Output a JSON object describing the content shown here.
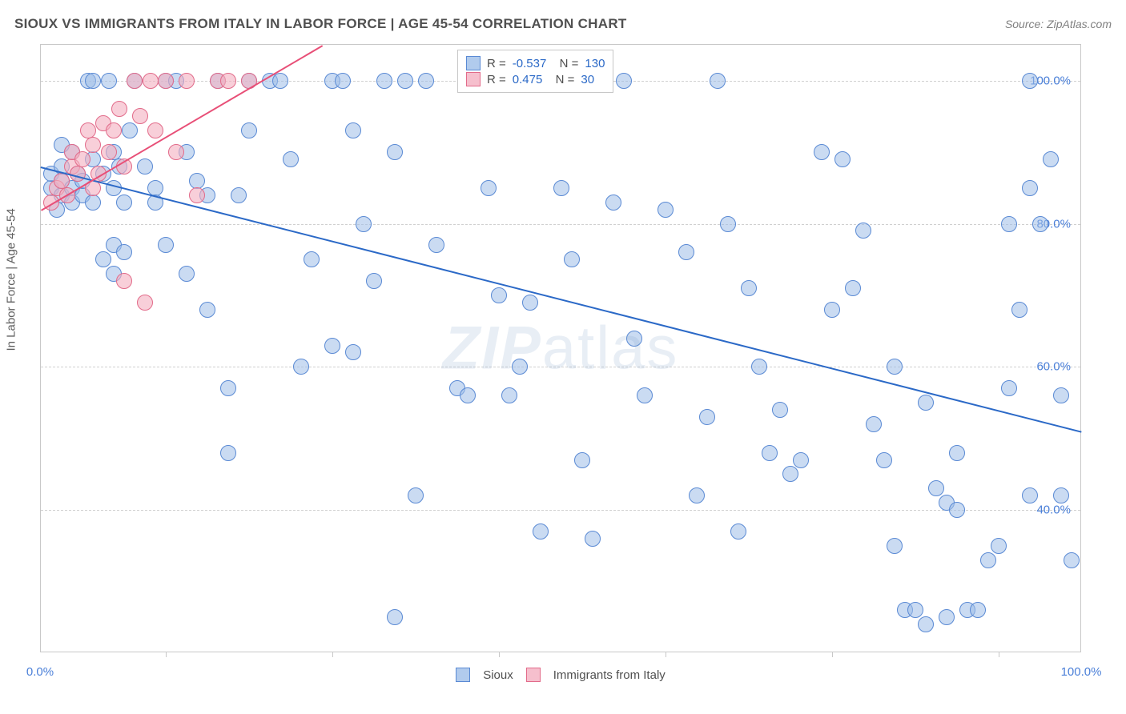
{
  "title": "SIOUX VS IMMIGRANTS FROM ITALY IN LABOR FORCE | AGE 45-54 CORRELATION CHART",
  "source": "Source: ZipAtlas.com",
  "ylabel": "In Labor Force | Age 45-54",
  "watermark": {
    "left": "ZIP",
    "right": "atlas"
  },
  "chart": {
    "type": "scatter",
    "xlim": [
      0,
      100
    ],
    "ylim": [
      20,
      105
    ],
    "yticks": [
      40,
      60,
      80,
      100
    ],
    "ytick_labels": [
      "40.0%",
      "60.0%",
      "80.0%",
      "100.0%"
    ],
    "xtick_positions": [
      12,
      28,
      44,
      60,
      76,
      92
    ],
    "xlabel_min": "0.0%",
    "xlabel_max": "100.0%",
    "grid_color": "#d0d0d0",
    "background": "#ffffff",
    "border_color": "#c8c8c8",
    "marker_size": 20,
    "series": [
      {
        "name": "Sioux",
        "key": "a",
        "fill": "rgba(158,190,232,0.55)",
        "stroke": "#5a8ad4",
        "line_color": "#2b69c7",
        "R": "-0.537",
        "N": "130",
        "trend": {
          "x1": 0,
          "y1": 88,
          "x2": 100,
          "y2": 51
        },
        "points": [
          [
            1,
            85
          ],
          [
            1,
            87
          ],
          [
            2,
            84
          ],
          [
            2,
            86
          ],
          [
            2,
            88
          ],
          [
            1.5,
            82
          ],
          [
            3,
            85
          ],
          [
            3,
            83
          ],
          [
            3.5,
            87
          ],
          [
            3,
            90
          ],
          [
            4,
            84
          ],
          [
            4,
            86
          ],
          [
            4.5,
            100
          ],
          [
            2,
            91
          ],
          [
            5,
            83
          ],
          [
            5,
            89
          ],
          [
            5,
            100
          ],
          [
            6,
            75
          ],
          [
            6,
            87
          ],
          [
            6.5,
            100
          ],
          [
            7,
            77
          ],
          [
            7,
            73
          ],
          [
            7,
            90
          ],
          [
            7.5,
            88
          ],
          [
            7,
            85
          ],
          [
            8,
            83
          ],
          [
            8.5,
            93
          ],
          [
            8,
            76
          ],
          [
            9,
            100
          ],
          [
            10,
            88
          ],
          [
            11,
            85
          ],
          [
            11,
            83
          ],
          [
            12,
            77
          ],
          [
            12,
            100
          ],
          [
            13,
            100
          ],
          [
            14,
            73
          ],
          [
            14,
            90
          ],
          [
            15,
            86
          ],
          [
            16,
            84
          ],
          [
            16,
            68
          ],
          [
            17,
            100
          ],
          [
            18,
            57
          ],
          [
            18,
            48
          ],
          [
            19,
            84
          ],
          [
            20,
            100
          ],
          [
            20,
            93
          ],
          [
            22,
            100
          ],
          [
            23,
            100
          ],
          [
            24,
            89
          ],
          [
            25,
            60
          ],
          [
            26,
            75
          ],
          [
            28,
            100
          ],
          [
            28,
            63
          ],
          [
            29,
            100
          ],
          [
            30,
            93
          ],
          [
            30,
            62
          ],
          [
            31,
            80
          ],
          [
            32,
            72
          ],
          [
            33,
            100
          ],
          [
            34,
            90
          ],
          [
            34,
            25
          ],
          [
            35,
            100
          ],
          [
            36,
            42
          ],
          [
            37,
            100
          ],
          [
            38,
            77
          ],
          [
            40,
            57
          ],
          [
            41,
            56
          ],
          [
            42,
            100
          ],
          [
            43,
            85
          ],
          [
            44,
            70
          ],
          [
            45,
            56
          ],
          [
            46,
            60
          ],
          [
            47,
            69
          ],
          [
            48,
            37
          ],
          [
            50,
            100
          ],
          [
            50,
            85
          ],
          [
            51,
            75
          ],
          [
            52,
            47
          ],
          [
            53,
            36
          ],
          [
            54,
            100
          ],
          [
            55,
            83
          ],
          [
            56,
            100
          ],
          [
            57,
            64
          ],
          [
            58,
            56
          ],
          [
            60,
            82
          ],
          [
            62,
            76
          ],
          [
            63,
            42
          ],
          [
            64,
            53
          ],
          [
            65,
            100
          ],
          [
            66,
            80
          ],
          [
            67,
            37
          ],
          [
            68,
            71
          ],
          [
            69,
            60
          ],
          [
            70,
            48
          ],
          [
            71,
            54
          ],
          [
            72,
            45
          ],
          [
            73,
            47
          ],
          [
            75,
            90
          ],
          [
            76,
            68
          ],
          [
            77,
            89
          ],
          [
            78,
            71
          ],
          [
            79,
            79
          ],
          [
            80,
            52
          ],
          [
            81,
            47
          ],
          [
            82,
            60
          ],
          [
            82,
            35
          ],
          [
            83,
            26
          ],
          [
            84,
            26
          ],
          [
            85,
            24
          ],
          [
            85,
            55
          ],
          [
            86,
            43
          ],
          [
            87,
            25
          ],
          [
            87,
            41
          ],
          [
            88,
            40
          ],
          [
            88,
            48
          ],
          [
            89,
            26
          ],
          [
            90,
            26
          ],
          [
            91,
            33
          ],
          [
            92,
            35
          ],
          [
            93,
            57
          ],
          [
            94,
            68
          ],
          [
            95,
            42
          ],
          [
            95,
            85
          ],
          [
            96,
            80
          ],
          [
            97,
            89
          ],
          [
            98,
            56
          ],
          [
            98,
            42
          ],
          [
            99,
            33
          ],
          [
            93,
            80
          ],
          [
            95,
            100
          ]
        ]
      },
      {
        "name": "Immigrants from Italy",
        "key": "b",
        "fill": "rgba(244,175,192,0.6)",
        "stroke": "#e26b8a",
        "line_color": "#e84f77",
        "R": "0.475",
        "N": "30",
        "trend": {
          "x1": 0,
          "y1": 82,
          "x2": 27,
          "y2": 105
        },
        "points": [
          [
            1,
            83
          ],
          [
            1.5,
            85
          ],
          [
            2,
            86
          ],
          [
            2.5,
            84
          ],
          [
            3,
            88
          ],
          [
            3,
            90
          ],
          [
            3.5,
            87
          ],
          [
            4,
            89
          ],
          [
            4.5,
            93
          ],
          [
            5,
            91
          ],
          [
            5,
            85
          ],
          [
            5.5,
            87
          ],
          [
            6,
            94
          ],
          [
            6.5,
            90
          ],
          [
            7,
            93
          ],
          [
            7.5,
            96
          ],
          [
            8,
            88
          ],
          [
            8,
            72
          ],
          [
            9,
            100
          ],
          [
            9.5,
            95
          ],
          [
            10,
            69
          ],
          [
            10.5,
            100
          ],
          [
            11,
            93
          ],
          [
            12,
            100
          ],
          [
            13,
            90
          ],
          [
            14,
            100
          ],
          [
            15,
            84
          ],
          [
            17,
            100
          ],
          [
            18,
            100
          ],
          [
            20,
            100
          ]
        ]
      }
    ]
  },
  "legend_bottom": {
    "a": "Sioux",
    "b": "Immigrants from Italy"
  }
}
